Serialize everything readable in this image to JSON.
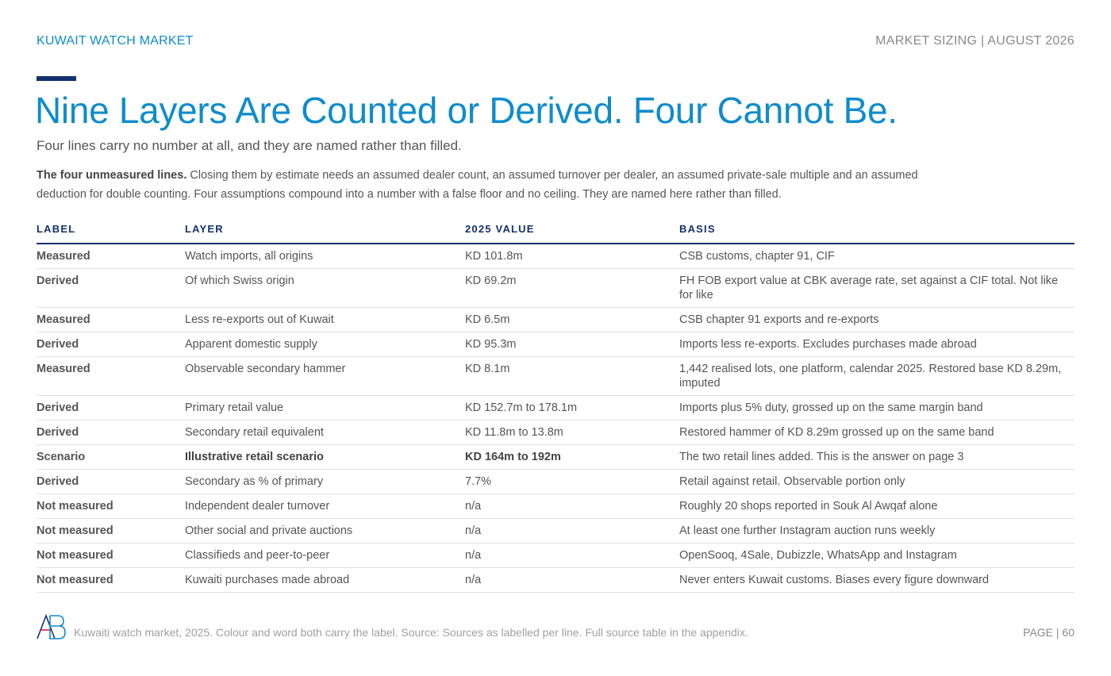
{
  "header": {
    "section": "KUWAIT WATCH MARKET",
    "report": "MARKET SIZING | AUGUST 2026"
  },
  "title": "Nine Layers Are Counted or Derived. Four Cannot Be.",
  "subtitle": "Four lines carry no number at all, and they are named rather than filled.",
  "intro": {
    "lead": "The four unmeasured lines.",
    "body": " Closing them by estimate needs an assumed dealer count, an assumed turnover per dealer, an assumed private-sale multiple and an assumed deduction for double counting. Four assumptions compound into a number with a false floor and no ceiling. They are named here rather than filled."
  },
  "table": {
    "columns": [
      "LABEL",
      "LAYER",
      "2025 VALUE",
      "BASIS"
    ],
    "rows": [
      {
        "label": "Measured",
        "layer": "Watch imports, all origins",
        "value": "KD 101.8m",
        "basis": "CSB customs, chapter 91, CIF"
      },
      {
        "label": "Derived",
        "layer": "Of which Swiss origin",
        "value": "KD 69.2m",
        "basis": "FH FOB export value at CBK average rate, set against a CIF total. Not like for like"
      },
      {
        "label": "Measured",
        "layer": "Less re-exports out of Kuwait",
        "value": "KD 6.5m",
        "basis": "CSB chapter 91 exports and re-exports"
      },
      {
        "label": "Derived",
        "layer": "Apparent domestic supply",
        "value": "KD 95.3m",
        "basis": "Imports less re-exports. Excludes purchases made abroad"
      },
      {
        "label": "Measured",
        "layer": "Observable secondary hammer",
        "value": "KD 8.1m",
        "basis": "1,442 realised lots, one platform, calendar 2025. Restored base KD 8.29m, imputed"
      },
      {
        "label": "Derived",
        "layer": "Primary retail value",
        "value": "KD 152.7m to 178.1m",
        "basis": "Imports plus 5% duty, grossed up on the same margin band"
      },
      {
        "label": "Derived",
        "layer": "Secondary retail equivalent",
        "value": "KD 11.8m to 13.8m",
        "basis": "Restored hammer of KD 8.29m grossed up on the same band"
      },
      {
        "label": "Scenario",
        "layer": "Illustrative retail scenario",
        "value": "KD 164m to 192m",
        "basis": "The two retail lines added. This is the answer on page 3"
      },
      {
        "label": "Derived",
        "layer": "Secondary as % of primary",
        "value": "7.7%",
        "basis": "Retail against retail. Observable portion only"
      },
      {
        "label": "Not measured",
        "layer": "Independent dealer turnover",
        "value": "n/a",
        "basis": "Roughly 20 shops reported in Souk Al Awqaf alone"
      },
      {
        "label": "Not measured",
        "layer": "Other social and private auctions",
        "value": "n/a",
        "basis": "At least one further Instagram auction runs weekly"
      },
      {
        "label": "Not measured",
        "layer": "Classifieds and peer-to-peer",
        "value": "n/a",
        "basis": "OpenSooq, 4Sale, Dubizzle, WhatsApp and Instagram"
      },
      {
        "label": "Not measured",
        "layer": "Kuwaiti purchases made abroad",
        "value": "n/a",
        "basis": "Never enters Kuwait customs. Biases every figure downward"
      }
    ]
  },
  "label_colors": {
    "Measured": "#14306e",
    "Derived": "#0f8ccc",
    "Scenario": "#e8174a",
    "Not measured": "#e8174a"
  },
  "footer": {
    "logo_icon": "ab-monogram-logo",
    "note": "Kuwaiti watch market, 2025. Colour and word both carry the label. Source: Sources as labelled per line. Full source table in the appendix.",
    "page": "PAGE | 60"
  }
}
